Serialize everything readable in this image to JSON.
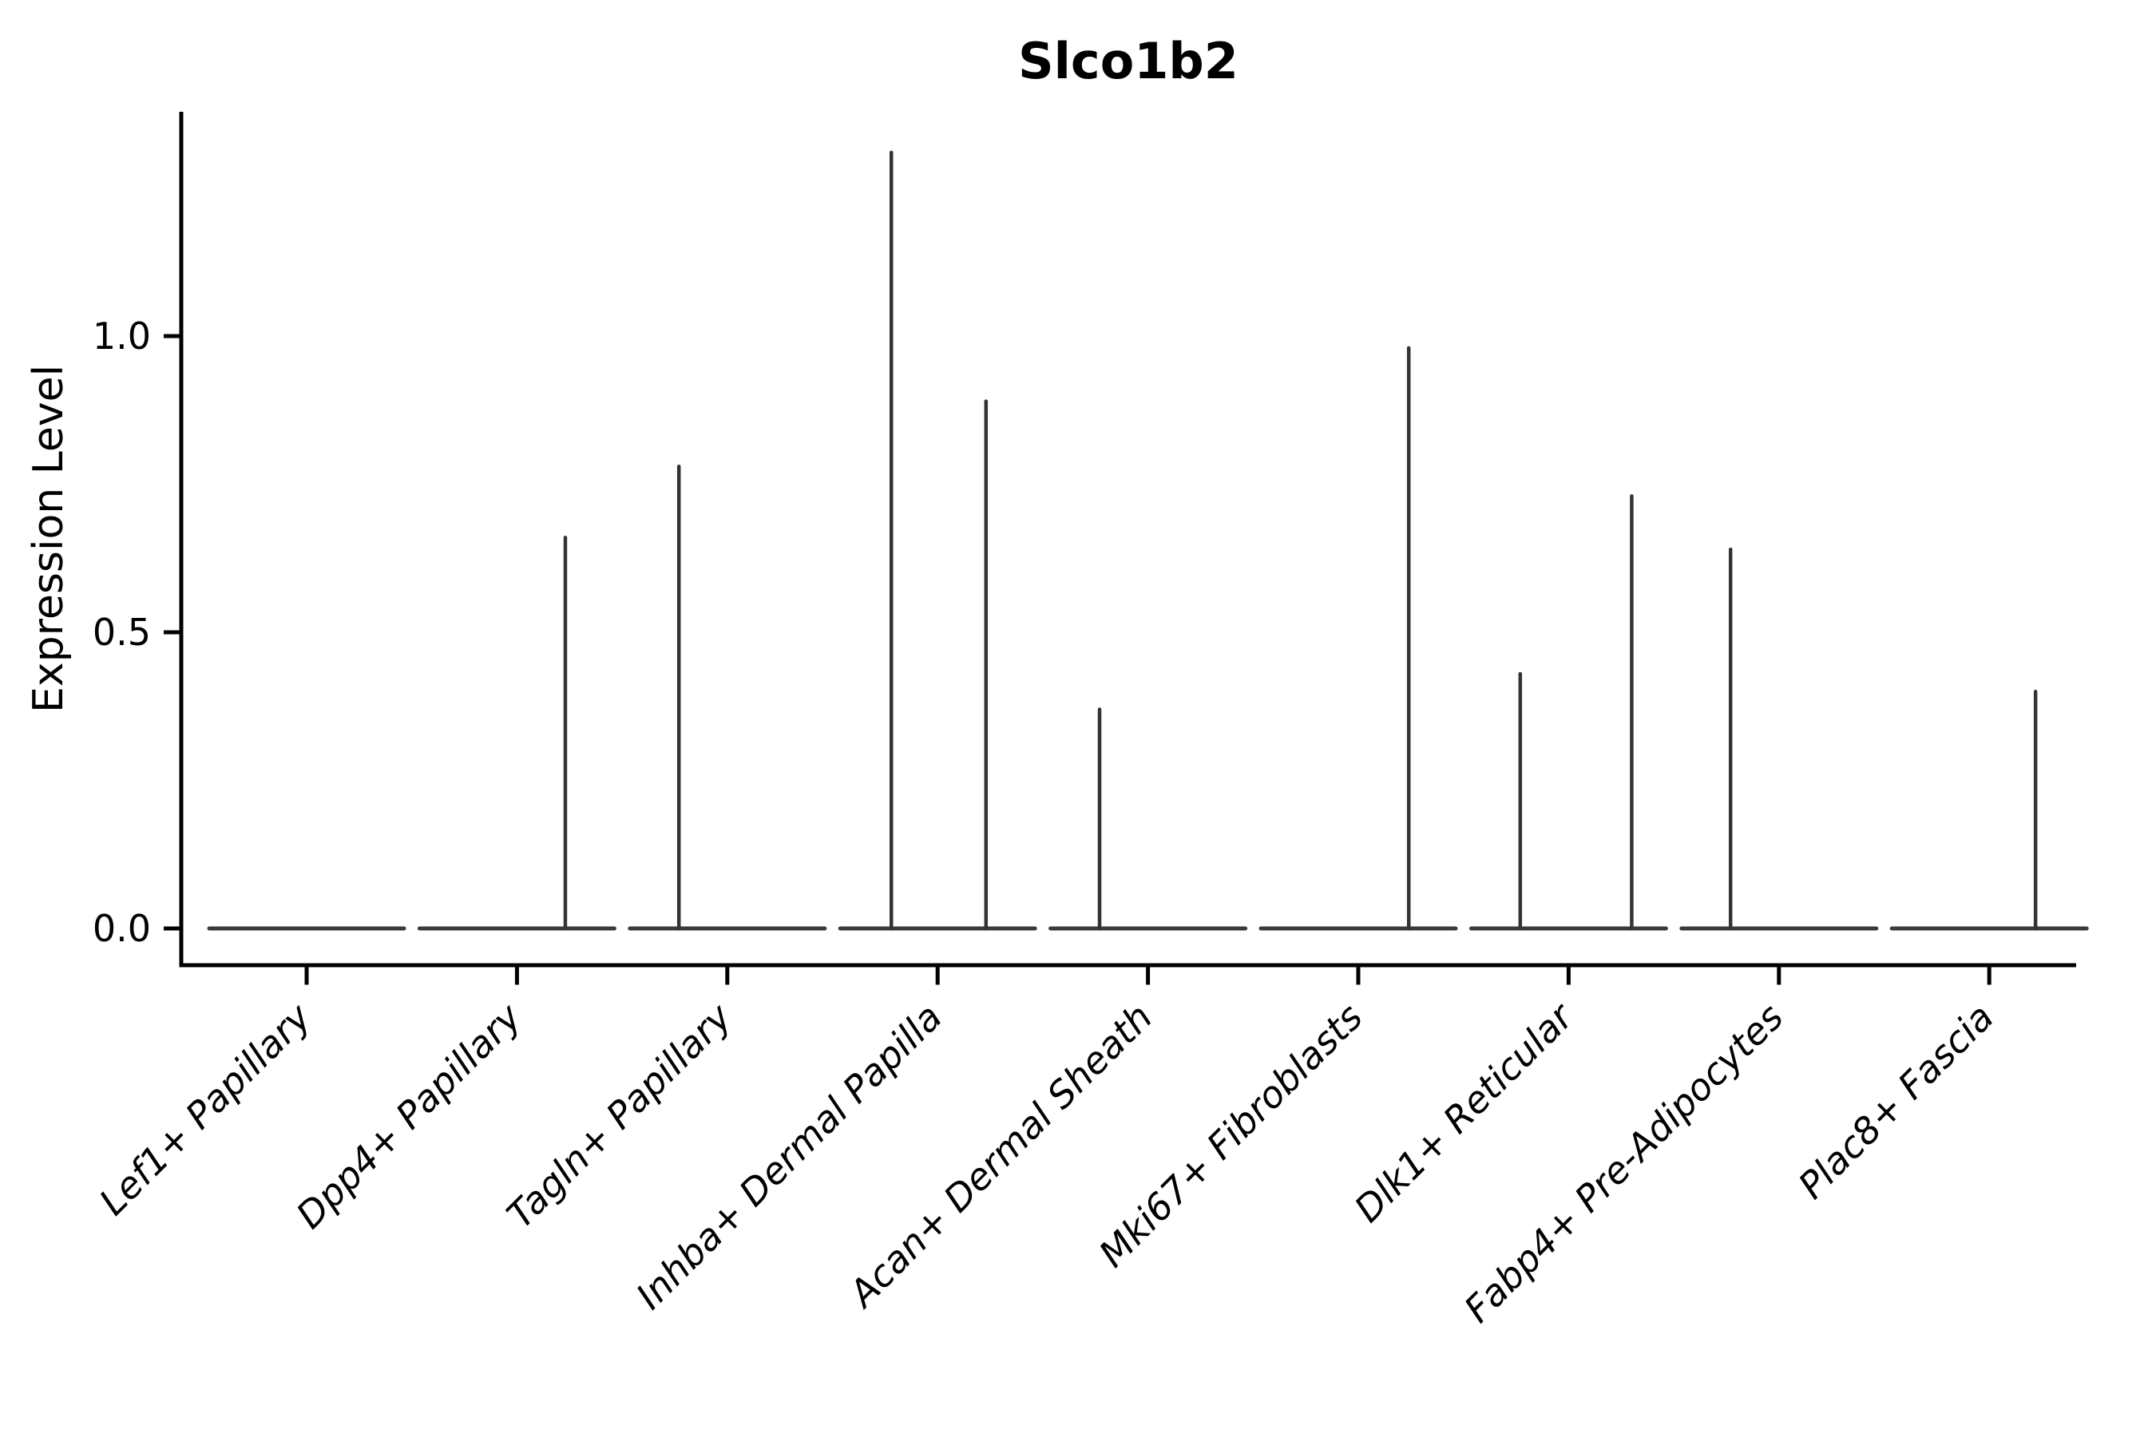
{
  "figure": {
    "background": "#ffffff"
  },
  "chart_data": {
    "type": "violin",
    "title": "Slco1b2",
    "xlabel": "",
    "ylabel": "Expression Level",
    "grid": false,
    "legend": null,
    "ylim": [
      -0.06,
      1.39
    ],
    "yticks": [
      0.0,
      0.5,
      1.0
    ],
    "ytick_labels": [
      "0.0",
      "0.5",
      "1.0"
    ],
    "categories": [
      "Lef1+ Papillary",
      "Dpp4+ Papillary",
      "Tagln+ Papillary",
      "Inhba+ Dermal Papilla",
      "Acan+ Dermal Sheath",
      "Mki67+ Fibroblasts",
      "Dlk1+ Reticular",
      "Fabp4+ Pre-Adipocytes",
      "Plac8+ Fascia"
    ],
    "baseline_value": 0.0,
    "violin_body_width_frac": 0.93,
    "violins": [
      {
        "category": "Lef1+ Papillary",
        "body": "flat-at-zero",
        "spikes": []
      },
      {
        "category": "Dpp4+ Papillary",
        "body": "flat-at-zero",
        "spikes": [
          {
            "dx": 0.23,
            "value": 0.66
          }
        ]
      },
      {
        "category": "Tagln+ Papillary",
        "body": "flat-at-zero",
        "spikes": [
          {
            "dx": -0.23,
            "value": 0.78
          }
        ]
      },
      {
        "category": "Inhba+ Dermal Papilla",
        "body": "flat-at-zero",
        "spikes": [
          {
            "dx": -0.22,
            "value": 1.31
          },
          {
            "dx": 0.23,
            "value": 0.89
          }
        ]
      },
      {
        "category": "Acan+ Dermal Sheath",
        "body": "flat-at-zero",
        "spikes": [
          {
            "dx": -0.23,
            "value": 0.37
          }
        ]
      },
      {
        "category": "Mki67+ Fibroblasts",
        "body": "flat-at-zero",
        "spikes": [
          {
            "dx": 0.24,
            "value": 0.98
          }
        ]
      },
      {
        "category": "Dlk1+ Reticular",
        "body": "flat-at-zero",
        "spikes": [
          {
            "dx": -0.23,
            "value": 0.43
          },
          {
            "dx": 0.3,
            "value": 0.73
          }
        ]
      },
      {
        "category": "Fabp4+ Pre-Adipocytes",
        "body": "flat-at-zero",
        "spikes": [
          {
            "dx": -0.23,
            "value": 0.64
          }
        ]
      },
      {
        "category": "Plac8+ Fascia",
        "body": "flat-at-zero",
        "spikes": [
          {
            "dx": 0.22,
            "value": 0.4
          }
        ]
      }
    ],
    "colors": {
      "violin_stroke": "#3a3a3a",
      "spike_stroke": "#333333",
      "axis": "#000000",
      "text": "#000000"
    },
    "x_label_style": "italic, rotated 45deg, right-anchored at tick"
  }
}
